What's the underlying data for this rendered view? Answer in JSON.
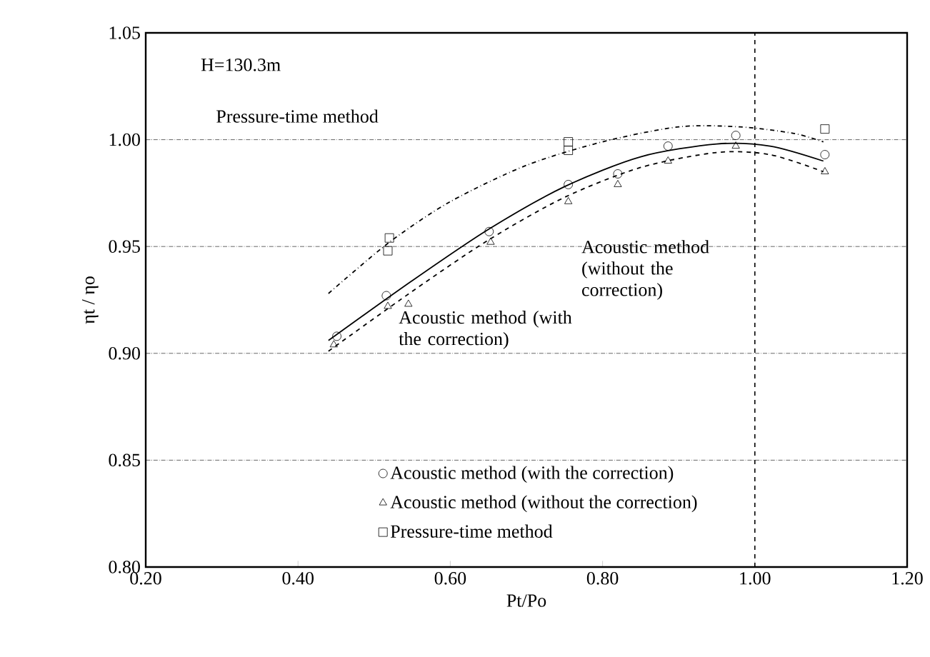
{
  "chart_data": {
    "type": "scatter",
    "xlabel": "Pt/Po",
    "ylabel": "ηt / ηo",
    "xlim": [
      0.2,
      1.2
    ],
    "xticks": [
      {
        "value": 0.2,
        "label": "0.20"
      },
      {
        "value": 0.4,
        "label": "0.40"
      },
      {
        "value": 0.6,
        "label": "0.60"
      },
      {
        "value": 0.8,
        "label": "0.80"
      },
      {
        "value": 1.0,
        "label": "1.00"
      },
      {
        "value": 1.2,
        "label": "1.20"
      }
    ],
    "ylim": [
      0.8,
      1.05
    ],
    "yticks": [
      {
        "value": 0.8,
        "label": "0.80"
      },
      {
        "value": 0.85,
        "label": "0.85"
      },
      {
        "value": 0.9,
        "label": "0.90"
      },
      {
        "value": 0.95,
        "label": "0.95"
      },
      {
        "value": 1.0,
        "label": "1.00"
      },
      {
        "value": 1.05,
        "label": "1.05"
      }
    ],
    "grid": "y",
    "legend": "bottom",
    "ref_lines": [
      {
        "axis": "x",
        "value": 1.0,
        "line_style": "dashed"
      }
    ],
    "annotations": [
      "H=130.3m",
      "Pressure-time method",
      "Acoustic method (without the correction)",
      "Acoustic method (with the correction)"
    ],
    "series": [
      {
        "name": "Acoustic method (with the correction)",
        "color": "#000000",
        "marker": "circle",
        "x": [
          0.451,
          0.516,
          0.651,
          0.755,
          0.82,
          0.886,
          0.975,
          1.092
        ],
        "values": [
          0.908,
          0.927,
          0.957,
          0.979,
          0.984,
          0.997,
          1.002,
          0.993
        ]
      },
      {
        "name": "Acoustic method (without the correction)",
        "color": "#000000",
        "marker": "triangle",
        "x": [
          0.447,
          0.518,
          0.545,
          0.653,
          0.755,
          0.82,
          0.886,
          0.975,
          1.092
        ],
        "values": [
          0.904,
          0.922,
          0.923,
          0.952,
          0.971,
          0.979,
          0.99,
          0.997,
          0.985
        ]
      },
      {
        "name": "Pressure-time method",
        "color": "#000000",
        "marker": "square",
        "x": [
          0.518,
          0.52,
          0.755,
          0.755,
          1.092
        ],
        "values": [
          0.948,
          0.954,
          0.995,
          0.999,
          1.005
        ]
      },
      {
        "type": "line",
        "color": "#000000",
        "line_style": "solid",
        "x": [
          0.44,
          0.55,
          0.65,
          0.75,
          0.85,
          0.95,
          1.02,
          1.09
        ],
        "values": [
          0.906,
          0.934,
          0.958,
          0.978,
          0.992,
          0.998,
          0.997,
          0.99
        ]
      },
      {
        "type": "line",
        "color": "#000000",
        "line_style": "dashed",
        "x": [
          0.44,
          0.55,
          0.65,
          0.75,
          0.85,
          0.95,
          1.02,
          1.09
        ],
        "values": [
          0.901,
          0.929,
          0.953,
          0.973,
          0.987,
          0.994,
          0.993,
          0.985
        ]
      },
      {
        "type": "line",
        "color": "#000000",
        "line_style": "dotted",
        "x": [
          0.44,
          0.52,
          0.6,
          0.7,
          0.8,
          0.9,
          0.98,
          1.05,
          1.09
        ],
        "values": [
          0.928,
          0.952,
          0.971,
          0.988,
          0.999,
          1.006,
          1.006,
          1.003,
          0.999
        ]
      }
    ]
  }
}
